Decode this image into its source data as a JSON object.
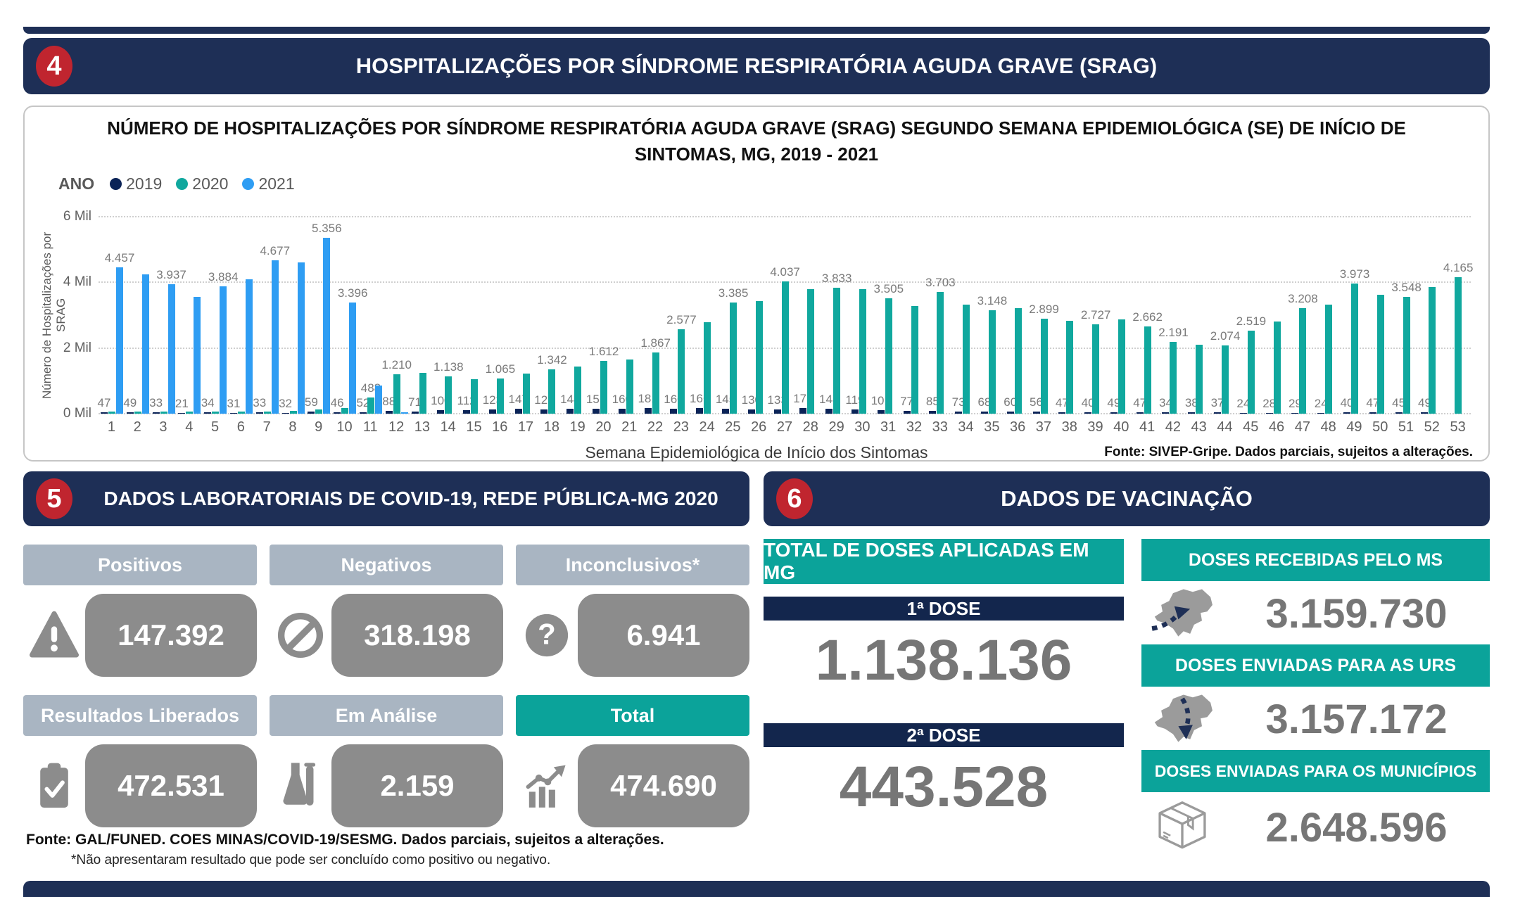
{
  "colors": {
    "navy": "#1E2F56",
    "red": "#C0252F",
    "teal": "#0BA39A",
    "slate_header": "#A9B5C2",
    "gray_box": "#8C8C8C",
    "gray_number": "#767676",
    "bar_2019": "#0A2357",
    "bar_2020": "#10A89E",
    "bar_2021": "#2E9DF3"
  },
  "section4": {
    "badge": "4",
    "title": "HOSPITALIZAÇÕES POR SÍNDROME RESPIRATÓRIA AGUDA GRAVE (SRAG)"
  },
  "chart_data": {
    "type": "bar",
    "title": "NÚMERO DE HOSPITALIZAÇÕES POR SÍNDROME RESPIRATÓRIA AGUDA GRAVE (SRAG) SEGUNDO SEMANA EPIDEMIOLÓGICA (SE) DE INÍCIO DE SINTOMAS, MG, 2019 - 2021",
    "legend_title": "ANO",
    "xlabel": "Semana Epidemiológica de Início dos Sintomas",
    "ylabel": "Número de Hospitalizações por SRAG",
    "y_ticks": [
      "0 Mil",
      "2 Mil",
      "4 Mil",
      "6 Mil"
    ],
    "ylim": [
      0,
      6000
    ],
    "grid": "dotted-horizontal",
    "legend_position": "top-left",
    "source_note": "Fonte: SIVEP-Gripe. Dados parciais, sujeitos a alterações.",
    "categories": [
      1,
      2,
      3,
      4,
      5,
      6,
      7,
      8,
      9,
      10,
      11,
      12,
      13,
      14,
      15,
      16,
      17,
      18,
      19,
      20,
      21,
      22,
      23,
      24,
      25,
      26,
      27,
      28,
      29,
      30,
      31,
      32,
      33,
      34,
      35,
      36,
      37,
      38,
      39,
      40,
      41,
      42,
      43,
      44,
      45,
      46,
      47,
      48,
      49,
      50,
      51,
      52,
      53
    ],
    "series": [
      {
        "name": "2019",
        "color": "#0A2357",
        "values": [
          47,
          49,
          33,
          21,
          34,
          31,
          33,
          32,
          59,
          46,
          52,
          88,
          71,
          100,
          112,
          123,
          147,
          123,
          144,
          151,
          160,
          181,
          160,
          166,
          145,
          130,
          133,
          172,
          148,
          119,
          101,
          77,
          85,
          73,
          68,
          60,
          56,
          47,
          40,
          49,
          47,
          34,
          38,
          37,
          24,
          28,
          29,
          24,
          40,
          47,
          45,
          49,
          null
        ],
        "labels": [
          "47",
          "49",
          "33",
          "21",
          "34",
          "31",
          "33",
          "32",
          "59",
          "46",
          "52",
          "88",
          "71",
          "100",
          "112",
          "123",
          "147",
          "123",
          "144",
          "151",
          "160",
          "181",
          "160",
          "166",
          "145",
          "130",
          "133",
          "172",
          "148",
          "119",
          "101",
          "77",
          "85",
          "73",
          "68",
          "60",
          "56",
          "47",
          "40",
          "49",
          "47",
          "34",
          "38",
          "37",
          "24",
          "28",
          "29",
          "24",
          "40",
          "47",
          "45",
          "49",
          null
        ]
      },
      {
        "name": "2020",
        "color": "#10A89E",
        "values": [
          60,
          55,
          65,
          60,
          70,
          65,
          70,
          90,
          130,
          175,
          488,
          1210,
          1250,
          1138,
          1040,
          1065,
          1220,
          1342,
          1430,
          1612,
          1650,
          1867,
          2577,
          2780,
          3385,
          3430,
          4037,
          3800,
          3833,
          3800,
          3505,
          3280,
          3703,
          3320,
          3148,
          3210,
          2899,
          2820,
          2727,
          2870,
          2662,
          2191,
          2090,
          2074,
          2519,
          2800,
          3208,
          3320,
          3973,
          3620,
          3548,
          3860,
          4165
        ],
        "labels": [
          null,
          null,
          null,
          null,
          null,
          null,
          null,
          null,
          null,
          null,
          "488",
          "1.210",
          null,
          "1.138",
          null,
          "1.065",
          null,
          "1.342",
          null,
          "1.612",
          null,
          "1.867",
          "2.577",
          null,
          "3.385",
          null,
          "4.037",
          null,
          "3.833",
          null,
          "3.505",
          null,
          "3.703",
          null,
          "3.148",
          null,
          "2.899",
          null,
          "2.727",
          null,
          "2.662",
          "2.191",
          null,
          "2.074",
          "2.519",
          null,
          "3.208",
          null,
          "3.973",
          null,
          "3.548",
          null,
          "4.165"
        ]
      },
      {
        "name": "2021",
        "color": "#2E9DF3",
        "values": [
          4457,
          4250,
          3937,
          3560,
          3884,
          4100,
          4677,
          4600,
          5356,
          3396,
          850,
          40,
          null,
          null,
          null,
          null,
          null,
          null,
          null,
          null,
          null,
          null,
          null,
          null,
          null,
          null,
          null,
          null,
          null,
          null,
          null,
          null,
          null,
          null,
          null,
          null,
          null,
          null,
          null,
          null,
          null,
          null,
          null,
          null,
          null,
          null,
          null,
          null,
          null,
          null,
          null,
          null,
          null
        ],
        "labels": [
          "4.457",
          null,
          "3.937",
          null,
          "3.884",
          null,
          "4.677",
          null,
          "5.356",
          "3.396",
          null,
          null,
          null,
          null,
          null,
          null,
          null,
          null,
          null,
          null,
          null,
          null,
          null,
          null,
          null,
          null,
          null,
          null,
          null,
          null,
          null,
          null,
          null,
          null,
          null,
          null,
          null,
          null,
          null,
          null,
          null,
          null,
          null,
          null,
          null,
          null,
          null,
          null,
          null,
          null,
          null,
          null,
          null
        ]
      }
    ]
  },
  "section5": {
    "badge": "5",
    "title": "DADOS LABORATORIAIS DE COVID-19, REDE PÚBLICA-MG 2020",
    "cards": [
      {
        "label": "Positivos",
        "value": "147.392",
        "icon": "warning-icon"
      },
      {
        "label": "Negativos",
        "value": "318.198",
        "icon": "no-symbol-icon"
      },
      {
        "label": "Inconclusivos*",
        "value": "6.941",
        "icon": "question-icon"
      },
      {
        "label": "Resultados Liberados",
        "value": "472.531",
        "icon": "clipboard-check-icon"
      },
      {
        "label": "Em Análise",
        "value": "2.159",
        "icon": "flask-icon"
      },
      {
        "label": "Total",
        "value": "474.690",
        "icon": "chart-up-icon"
      }
    ],
    "footnote_source": "Fonte: GAL/FUNED. COES MINAS/COVID-19/SESMG. Dados parciais, sujeitos a alterações.",
    "footnote_note": "*Não apresentaram resultado que pode ser concluído como positivo ou negativo."
  },
  "section6": {
    "badge": "6",
    "title": "DADOS DE VACINAÇÃO",
    "applied": {
      "header": "TOTAL DE DOSES APLICADAS EM MG",
      "dose1_label": "1ª DOSE",
      "dose1_value": "1.138.136",
      "dose2_label": "2ª DOSE",
      "dose2_value": "443.528"
    },
    "distribution": [
      {
        "header": "DOSES RECEBIDAS PELO MS",
        "value": "3.159.730",
        "icon": "mg-map-arrow-in-icon"
      },
      {
        "header": "DOSES ENVIADAS PARA AS URS",
        "value": "3.157.172",
        "icon": "mg-map-arrow-down-icon"
      },
      {
        "header": "DOSES ENVIADAS PARA OS MUNICÍPIOS",
        "value": "2.648.596",
        "icon": "package-box-icon"
      }
    ]
  }
}
